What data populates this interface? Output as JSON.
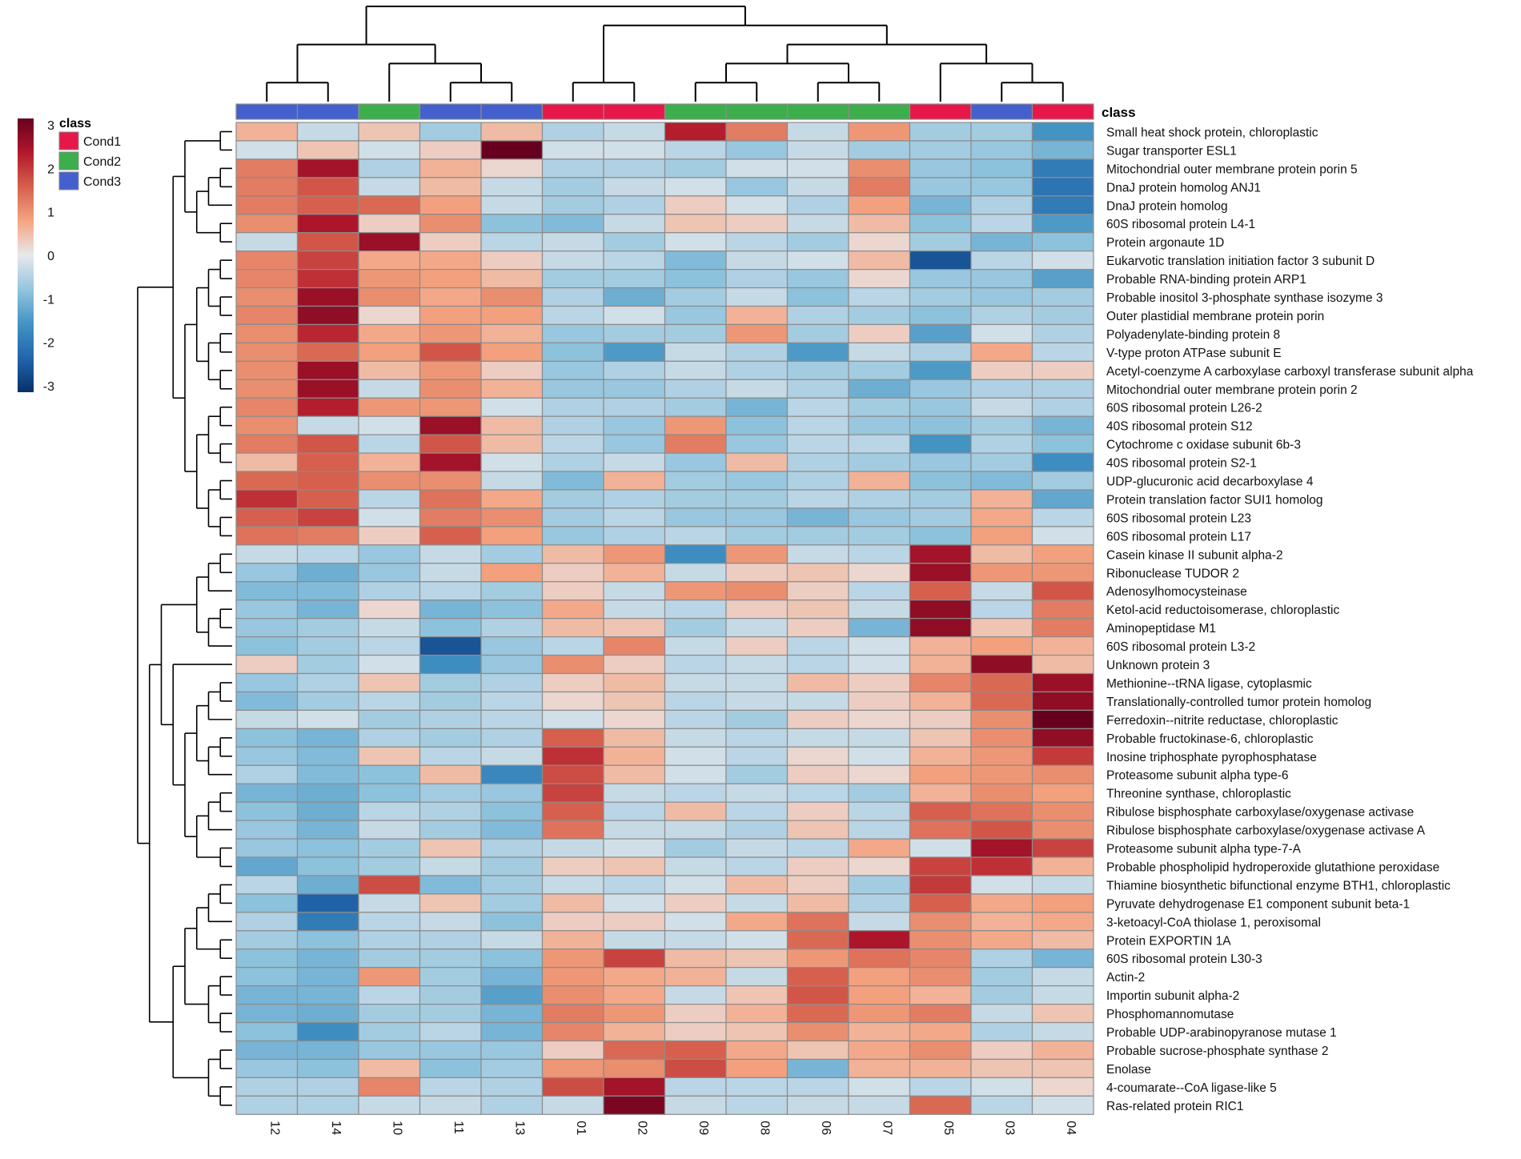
{
  "chart_data": {
    "type": "heatmap",
    "title": "",
    "xlabel": "",
    "ylabel": "",
    "class_header": "class",
    "legend": {
      "title": "class",
      "entries": [
        {
          "name": "Cond1",
          "color": "#e8174a"
        },
        {
          "name": "Cond2",
          "color": "#3caf4c"
        },
        {
          "name": "Cond3",
          "color": "#4460cf"
        }
      ]
    },
    "colorbar": {
      "min": -3,
      "max": 3,
      "ticks": [
        "3",
        "2",
        "1",
        "0",
        "-1",
        "-2",
        "-3"
      ],
      "colors": [
        "#08306b",
        "#2166ac",
        "#4393c3",
        "#92c5de",
        "#e8e8ec",
        "#f4a582",
        "#d6604d",
        "#b2182b",
        "#67001f"
      ]
    },
    "columns": [
      "12",
      "14",
      "10",
      "11",
      "13",
      "01",
      "02",
      "09",
      "08",
      "06",
      "07",
      "05",
      "03",
      "04"
    ],
    "column_classes": [
      "Cond3",
      "Cond3",
      "Cond2",
      "Cond3",
      "Cond3",
      "Cond1",
      "Cond1",
      "Cond2",
      "Cond2",
      "Cond2",
      "Cond2",
      "Cond1",
      "Cond3",
      "Cond1"
    ],
    "rows": [
      "Small heat shock protein, chloroplastic",
      "Sugar transporter ESL1",
      "Mitochondrial outer membrane protein porin 5",
      "DnaJ protein homolog ANJ1",
      "DnaJ protein homolog",
      "60S ribosomal protein L4-1",
      "Protein argonaute 1D",
      "Eukarvotic translation initiation factor 3 subunit D",
      "Probable RNA-binding protein ARP1",
      "Probable inositol 3-phosphate synthase isozyme 3",
      "Outer plastidial membrane protein porin",
      "Polyadenylate-binding protein 8",
      "V-type proton ATPase subunit E",
      "Acetyl-coenzyme A carboxylase carboxyl transferase subunit alpha",
      "Mitochondrial outer membrane protein porin 2",
      "60S ribosomal protein L26-2",
      "40S ribosomal protein S12",
      "Cytochrome c oxidase subunit 6b-3",
      "40S ribosomal protein S2-1",
      "UDP-glucuronic acid decarboxylase 4",
      "Protein translation factor SUI1 homolog",
      "60S ribosomal protein L23",
      "60S ribosomal protein L17",
      "Casein kinase II subunit alpha-2",
      "Ribonuclease TUDOR 2",
      "Adenosylhomocysteinase",
      "Ketol-acid reductoisomerase, chloroplastic",
      "Aminopeptidase M1",
      "60S ribosomal protein L3-2",
      "Unknown protein 3",
      "Methionine--tRNA ligase, cytoplasmic",
      "Translationally-controlled tumor protein homolog",
      "Ferredoxin--nitrite reductase, chloroplastic",
      "Probable fructokinase-6, chloroplastic",
      "Inosine triphosphate pyrophosphatase",
      "Proteasome subunit alpha type-6",
      "Threonine synthase, chloroplastic",
      "Ribulose bisphosphate carboxylase/oxygenase activase",
      "Ribulose bisphosphate carboxylase/oxygenase activase A",
      "Proteasome subunit alpha type-7-A",
      "Probable phospholipid hydroperoxide glutathione peroxidase",
      "Thiamine biosynthetic bifunctional enzyme BTH1, chloroplastic",
      "Pyruvate dehydrogenase E1 component subunit beta-1",
      "3-ketoacyl-CoA thiolase 1, peroxisomal",
      "Protein EXPORTIN 1A",
      "60S ribosomal protein L30-3",
      "Actin-2",
      "Importin subunit alpha-2",
      "Phosphomannomutase",
      "Probable UDP-arabinopyranose mutase 1",
      "Probable sucrose-phosphate synthase 2",
      "Enolase",
      "4-coumarate--CoA ligase-like 5",
      "Ras-related protein RIC1"
    ],
    "values": [
      [
        0.6,
        -0.3,
        0.4,
        -0.6,
        0.5,
        -0.5,
        -0.3,
        2.2,
        1.2,
        -0.3,
        0.9,
        -0.6,
        -0.6,
        -1.5
      ],
      [
        -0.2,
        0.4,
        -0.2,
        0.3,
        3.0,
        -0.2,
        -0.2,
        -0.4,
        -0.7,
        -0.3,
        -0.6,
        -0.6,
        -0.7,
        -1.0
      ],
      [
        1.2,
        2.4,
        -0.5,
        0.6,
        0.2,
        -0.5,
        -0.5,
        -0.6,
        -0.2,
        -0.2,
        1.0,
        -0.7,
        -0.8,
        -1.9
      ],
      [
        1.2,
        1.6,
        -0.3,
        0.5,
        -0.3,
        -0.6,
        -0.3,
        -0.2,
        -0.7,
        -0.3,
        1.2,
        -0.7,
        -0.7,
        -2.0
      ],
      [
        1.2,
        1.5,
        1.4,
        0.8,
        -0.3,
        -0.6,
        -0.5,
        0.3,
        -0.2,
        -0.5,
        0.8,
        -1.0,
        -0.5,
        -1.9
      ],
      [
        1.0,
        2.3,
        0.3,
        1.0,
        -0.8,
        -0.9,
        -0.3,
        0.4,
        0.3,
        -0.3,
        0.5,
        -0.8,
        -0.4,
        -1.4
      ],
      [
        -0.3,
        1.6,
        2.5,
        0.3,
        -0.4,
        -0.3,
        -0.6,
        -0.2,
        -0.4,
        -0.6,
        0.2,
        -0.6,
        -1.0,
        -0.8
      ],
      [
        1.1,
        1.8,
        0.7,
        0.7,
        0.3,
        -0.3,
        -0.4,
        -0.9,
        -0.3,
        -0.2,
        0.5,
        -2.5,
        -0.4,
        -0.2
      ],
      [
        1.1,
        2.0,
        0.9,
        0.8,
        0.5,
        -0.6,
        -0.6,
        -0.8,
        -0.5,
        -0.7,
        0.2,
        -0.7,
        -0.7,
        -1.3
      ],
      [
        1.0,
        2.5,
        1.0,
        0.7,
        1.0,
        -0.5,
        -1.1,
        -0.6,
        -0.3,
        -0.8,
        -0.4,
        -0.6,
        -0.7,
        -0.6
      ],
      [
        1.1,
        2.6,
        0.2,
        0.8,
        0.8,
        -0.4,
        -0.2,
        -0.7,
        0.6,
        -0.5,
        -0.6,
        -0.8,
        -0.5,
        -0.6
      ],
      [
        1.0,
        2.1,
        0.7,
        0.9,
        0.6,
        -0.7,
        -0.6,
        -0.6,
        0.9,
        -0.6,
        0.3,
        -1.3,
        -0.2,
        -0.5
      ],
      [
        1.0,
        1.4,
        0.8,
        1.6,
        0.8,
        -0.8,
        -1.4,
        -0.3,
        -0.5,
        -1.4,
        -0.3,
        -0.5,
        0.7,
        -0.4
      ],
      [
        1.0,
        2.5,
        0.5,
        0.9,
        0.3,
        -0.7,
        -0.5,
        -0.3,
        -0.5,
        -0.6,
        -0.6,
        -1.4,
        0.3,
        0.3
      ],
      [
        1.0,
        2.5,
        -0.3,
        1.0,
        0.6,
        -0.7,
        -0.7,
        -0.5,
        -0.3,
        -0.5,
        -1.1,
        -0.7,
        -0.5,
        -0.5
      ],
      [
        1.1,
        2.2,
        0.9,
        0.9,
        -0.2,
        -0.5,
        -0.5,
        -0.6,
        -1.0,
        -0.4,
        -0.6,
        -0.7,
        -0.3,
        -0.5
      ],
      [
        1.0,
        -0.3,
        -0.2,
        2.5,
        0.5,
        -0.5,
        -0.7,
        0.9,
        -0.8,
        -0.4,
        -0.7,
        -0.8,
        -0.6,
        -1.0
      ],
      [
        1.2,
        1.6,
        -0.4,
        1.6,
        0.5,
        -0.4,
        -0.7,
        1.2,
        -0.7,
        -0.4,
        -0.4,
        -1.5,
        -0.5,
        -0.8
      ],
      [
        0.5,
        1.5,
        0.6,
        2.4,
        -0.2,
        -0.5,
        -0.3,
        -0.7,
        0.5,
        -0.5,
        -0.6,
        -0.7,
        -0.6,
        -1.6
      ],
      [
        1.4,
        1.5,
        1.0,
        1.0,
        -0.3,
        -0.9,
        0.6,
        -0.6,
        -0.7,
        -0.5,
        0.6,
        -0.8,
        -0.9,
        -0.6
      ],
      [
        2.0,
        1.5,
        -0.4,
        1.3,
        0.7,
        -0.6,
        -0.5,
        -0.6,
        -0.6,
        -0.4,
        -0.5,
        -0.6,
        0.6,
        -1.2
      ],
      [
        1.5,
        1.8,
        -0.2,
        1.2,
        1.0,
        -0.6,
        -0.4,
        -0.7,
        -0.7,
        -1.0,
        -0.7,
        -0.6,
        0.7,
        -0.4
      ],
      [
        1.3,
        1.2,
        0.3,
        1.5,
        0.8,
        -0.7,
        -0.5,
        -0.4,
        -0.6,
        -0.6,
        -0.6,
        -0.8,
        0.8,
        -0.2
      ],
      [
        -0.3,
        -0.4,
        -0.7,
        -0.3,
        -0.6,
        0.5,
        0.9,
        -1.6,
        0.9,
        -0.3,
        -0.4,
        2.4,
        0.5,
        0.8
      ],
      [
        -0.7,
        -1.1,
        -0.7,
        -0.3,
        0.8,
        0.3,
        0.6,
        -0.3,
        0.3,
        0.4,
        0.2,
        2.5,
        0.9,
        0.9
      ],
      [
        -0.9,
        -0.9,
        -0.5,
        -0.4,
        -0.6,
        0.3,
        -0.3,
        0.9,
        1.0,
        0.3,
        -0.4,
        1.5,
        -0.3,
        1.6
      ],
      [
        -0.7,
        -1.0,
        0.2,
        -1.0,
        -0.8,
        0.7,
        -0.3,
        -0.4,
        0.3,
        0.4,
        -0.3,
        2.6,
        -0.4,
        1.2
      ],
      [
        -0.7,
        -0.6,
        -0.3,
        -0.8,
        -0.5,
        0.5,
        0.4,
        -0.6,
        -0.3,
        0.3,
        -1.0,
        2.6,
        0.4,
        1.2
      ],
      [
        -0.8,
        -0.6,
        -0.4,
        -2.5,
        -0.7,
        -0.4,
        1.1,
        -0.3,
        0.3,
        -0.4,
        -0.2,
        0.6,
        0.8,
        0.6
      ],
      [
        0.3,
        -0.6,
        -0.2,
        -1.6,
        -0.7,
        1.0,
        0.3,
        -0.4,
        -0.3,
        -0.4,
        -0.2,
        0.6,
        2.6,
        0.5
      ],
      [
        -0.7,
        -0.5,
        0.4,
        -0.6,
        -0.5,
        0.3,
        0.5,
        -0.3,
        -0.3,
        0.5,
        0.3,
        1.1,
        1.4,
        2.5
      ],
      [
        -0.9,
        -0.6,
        -0.4,
        -0.6,
        -0.4,
        0.2,
        0.4,
        -0.4,
        -0.3,
        -0.3,
        0.3,
        0.6,
        1.4,
        2.6
      ],
      [
        -0.3,
        -0.2,
        -0.6,
        -0.5,
        -0.4,
        -0.2,
        0.2,
        -0.4,
        -0.6,
        0.3,
        0.2,
        0.3,
        1.0,
        3.0
      ],
      [
        -0.8,
        -1.0,
        -0.5,
        -0.6,
        -0.5,
        1.5,
        0.5,
        -0.3,
        -0.4,
        -0.3,
        -0.3,
        0.4,
        1.0,
        2.6
      ],
      [
        -0.7,
        -0.9,
        0.4,
        -0.4,
        -0.3,
        2.0,
        0.6,
        -0.2,
        -0.4,
        0.2,
        -0.2,
        0.6,
        0.9,
        1.9
      ],
      [
        -0.5,
        -0.9,
        -0.8,
        0.5,
        -1.7,
        1.7,
        0.5,
        -0.2,
        -0.6,
        0.3,
        0.2,
        0.8,
        0.9,
        1.0
      ],
      [
        -1.0,
        -1.1,
        -0.8,
        -0.6,
        -0.7,
        1.8,
        -0.3,
        -0.4,
        -0.3,
        -0.4,
        -0.6,
        0.6,
        1.0,
        0.8
      ],
      [
        -0.8,
        -1.1,
        -0.4,
        -0.5,
        -0.8,
        1.5,
        -0.4,
        0.5,
        -0.4,
        0.3,
        -0.4,
        1.5,
        1.3,
        1.0
      ],
      [
        -0.7,
        -1.0,
        -0.3,
        -0.6,
        -0.9,
        1.3,
        -0.3,
        -0.3,
        -0.5,
        0.4,
        -0.4,
        1.3,
        1.6,
        1.0
      ],
      [
        -0.7,
        -0.8,
        -0.6,
        0.4,
        -0.5,
        -0.3,
        -0.2,
        -0.6,
        -0.3,
        -0.4,
        0.7,
        -0.2,
        2.4,
        1.8
      ],
      [
        -1.2,
        -0.8,
        -0.6,
        -0.3,
        -0.6,
        0.3,
        0.4,
        -0.3,
        -0.4,
        0.3,
        0.2,
        1.8,
        2.0,
        0.6
      ],
      [
        -0.4,
        -1.1,
        1.7,
        -0.9,
        -0.6,
        -0.3,
        -0.4,
        -0.2,
        0.5,
        0.3,
        -0.6,
        1.9,
        -0.2,
        -0.3
      ],
      [
        -0.8,
        -2.3,
        -0.3,
        0.4,
        -0.6,
        0.5,
        -0.2,
        0.3,
        -0.3,
        0.5,
        -0.5,
        1.5,
        0.7,
        0.8
      ],
      [
        -0.5,
        -1.9,
        -0.4,
        -0.3,
        -0.8,
        0.3,
        0.3,
        -0.2,
        0.7,
        1.3,
        -0.3,
        1.0,
        0.6,
        0.7
      ],
      [
        -0.6,
        -0.8,
        -0.5,
        -0.5,
        -0.3,
        0.6,
        -0.3,
        -0.3,
        -0.2,
        1.4,
        2.3,
        1.0,
        0.7,
        0.5
      ],
      [
        -0.8,
        -1.0,
        -0.6,
        -0.6,
        -0.8,
        0.9,
        1.8,
        0.5,
        0.4,
        0.9,
        1.3,
        1.1,
        -0.5,
        -1.0
      ],
      [
        -0.8,
        -1.0,
        0.9,
        -0.6,
        -1.0,
        0.9,
        0.7,
        0.6,
        -0.3,
        1.5,
        0.8,
        1.0,
        -0.6,
        -0.3
      ],
      [
        -1.0,
        -1.0,
        -0.4,
        -0.6,
        -1.3,
        1.0,
        0.7,
        -0.3,
        0.4,
        1.6,
        0.8,
        0.6,
        -0.6,
        -0.3
      ],
      [
        -1.0,
        -1.1,
        -0.6,
        -0.6,
        -1.0,
        1.2,
        0.9,
        0.3,
        0.6,
        1.4,
        0.9,
        1.2,
        -0.3,
        0.4
      ],
      [
        -0.8,
        -1.6,
        -0.6,
        -0.4,
        -1.0,
        1.1,
        0.6,
        0.3,
        0.4,
        1.0,
        0.6,
        0.7,
        -0.5,
        -0.3
      ],
      [
        -1.0,
        -1.0,
        -0.7,
        -0.7,
        -0.7,
        0.3,
        1.4,
        1.5,
        0.7,
        0.4,
        0.7,
        1.0,
        0.3,
        0.6
      ],
      [
        -0.7,
        -0.8,
        0.5,
        -0.8,
        -0.6,
        0.9,
        1.0,
        1.7,
        0.8,
        -1.0,
        0.6,
        0.6,
        0.4,
        0.4
      ],
      [
        -0.5,
        -0.5,
        1.1,
        -0.4,
        -0.5,
        1.7,
        2.4,
        -0.4,
        -0.4,
        -0.4,
        -0.2,
        -0.4,
        -0.2,
        0.2
      ],
      [
        -0.5,
        -0.5,
        -0.3,
        -0.3,
        -0.5,
        -0.3,
        2.8,
        -0.3,
        -0.4,
        -0.3,
        -0.3,
        1.4,
        -0.4,
        -0.2
      ]
    ]
  }
}
